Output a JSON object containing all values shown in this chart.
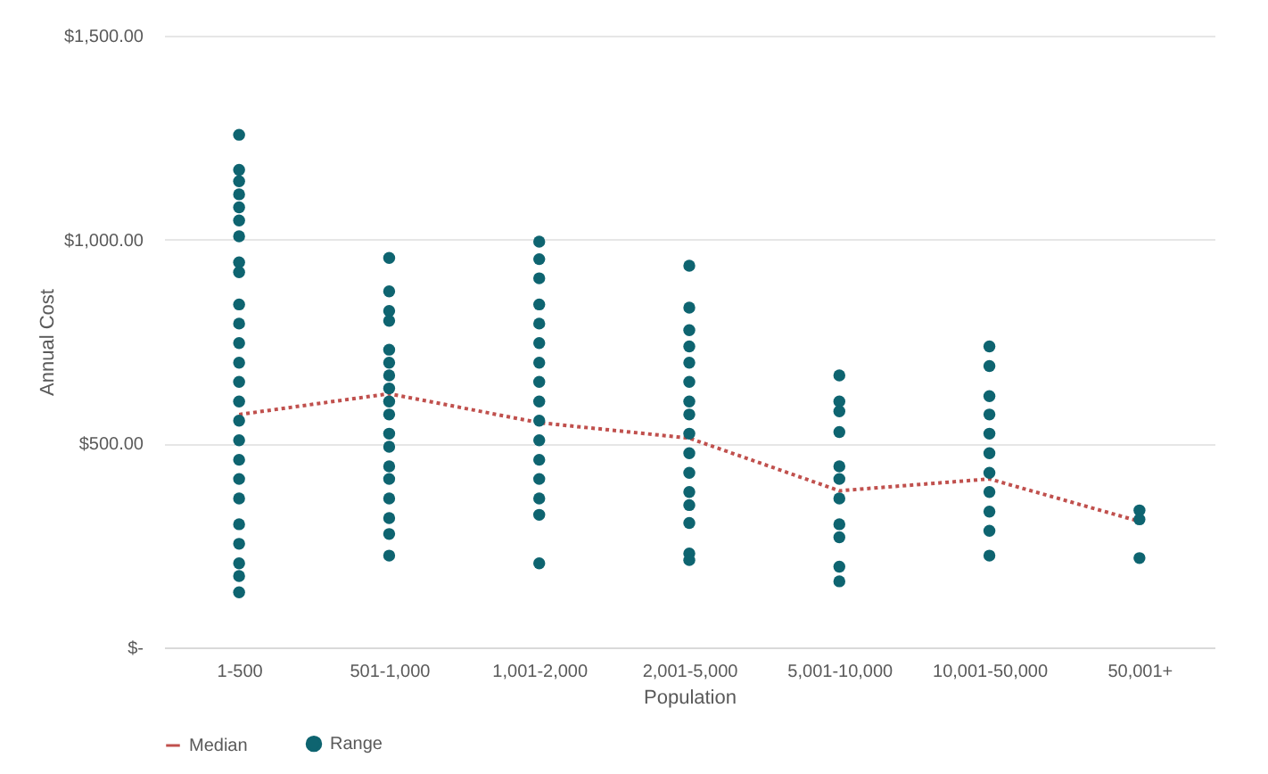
{
  "chart_data": {
    "type": "scatter",
    "xlabel": "Population",
    "ylabel": "Annual Cost",
    "categories": [
      "1-500",
      "501-1,000",
      "1,001-2,000",
      "2,001-5,000",
      "5,001-10,000",
      "10,001-50,000",
      "50,001+"
    ],
    "ylim": [
      0,
      1500
    ],
    "yticks": [
      {
        "value": 0,
        "label": "$-"
      },
      {
        "value": 500,
        "label": "$500.00"
      },
      {
        "value": 1000,
        "label": "$1,000.00"
      },
      {
        "value": 1500,
        "label": "$1,500.00"
      }
    ],
    "grid": "y",
    "legend": "bottom",
    "series": [
      {
        "name": "Median",
        "type": "line",
        "line_style": "dotted",
        "marker": "none",
        "color": "#c0504d",
        "values": [
          571,
          622,
          551,
          513,
          384,
          413,
          309
        ]
      },
      {
        "name": "Range",
        "marker": "circle",
        "color": "#0e6470",
        "x": [
          "1-500",
          "1-500",
          "1-500",
          "1-500",
          "1-500",
          "1-500",
          "1-500",
          "1-500",
          "1-500",
          "1-500",
          "1-500",
          "1-500",
          "1-500",
          "1-500",
          "1-500",
          "1-500",
          "1-500",
          "1-500",
          "1-500",
          "1-500",
          "1-500",
          "1-500",
          "1-500",
          "1-500",
          "1-500",
          "501-1,000",
          "501-1,000",
          "501-1,000",
          "501-1,000",
          "501-1,000",
          "501-1,000",
          "501-1,000",
          "501-1,000",
          "501-1,000",
          "501-1,000",
          "501-1,000",
          "501-1,000",
          "501-1,000",
          "501-1,000",
          "501-1,000",
          "501-1,000",
          "501-1,000",
          "501-1,000",
          "1,001-2,000",
          "1,001-2,000",
          "1,001-2,000",
          "1,001-2,000",
          "1,001-2,000",
          "1,001-2,000",
          "1,001-2,000",
          "1,001-2,000",
          "1,001-2,000",
          "1,001-2,000",
          "1,001-2,000",
          "1,001-2,000",
          "1,001-2,000",
          "1,001-2,000",
          "1,001-2,000",
          "1,001-2,000",
          "2,001-5,000",
          "2,001-5,000",
          "2,001-5,000",
          "2,001-5,000",
          "2,001-5,000",
          "2,001-5,000",
          "2,001-5,000",
          "2,001-5,000",
          "2,001-5,000",
          "2,001-5,000",
          "2,001-5,000",
          "2,001-5,000",
          "2,001-5,000",
          "2,001-5,000",
          "2,001-5,000",
          "2,001-5,000",
          "5,001-10,000",
          "5,001-10,000",
          "5,001-10,000",
          "5,001-10,000",
          "5,001-10,000",
          "5,001-10,000",
          "5,001-10,000",
          "5,001-10,000",
          "5,001-10,000",
          "5,001-10,000",
          "5,001-10,000",
          "10,001-50,000",
          "10,001-50,000",
          "10,001-50,000",
          "10,001-50,000",
          "10,001-50,000",
          "10,001-50,000",
          "10,001-50,000",
          "10,001-50,000",
          "10,001-50,000",
          "10,001-50,000",
          "10,001-50,000",
          "50,001+",
          "50,001+",
          "50,001+"
        ],
        "values": [
          1257,
          1171,
          1143,
          1111,
          1079,
          1047,
          1008,
          944,
          920,
          841,
          794,
          746,
          698,
          651,
          603,
          556,
          508,
          460,
          413,
          365,
          302,
          254,
          206,
          175,
          135,
          955,
          873,
          825,
          801,
          730,
          698,
          667,
          635,
          603,
          571,
          524,
          492,
          444,
          413,
          365,
          317,
          278,
          225,
          995,
          952,
          905,
          841,
          794,
          746,
          698,
          651,
          603,
          556,
          508,
          460,
          413,
          365,
          325,
          206,
          936,
          833,
          778,
          738,
          698,
          651,
          603,
          571,
          524,
          476,
          428,
          381,
          349,
          305,
          230,
          214,
          667,
          603,
          579,
          528,
          444,
          413,
          365,
          302,
          270,
          198,
          162,
          738,
          690,
          616,
          571,
          524,
          476,
          428,
          381,
          333,
          286,
          225,
          336,
          314,
          219
        ]
      }
    ]
  }
}
